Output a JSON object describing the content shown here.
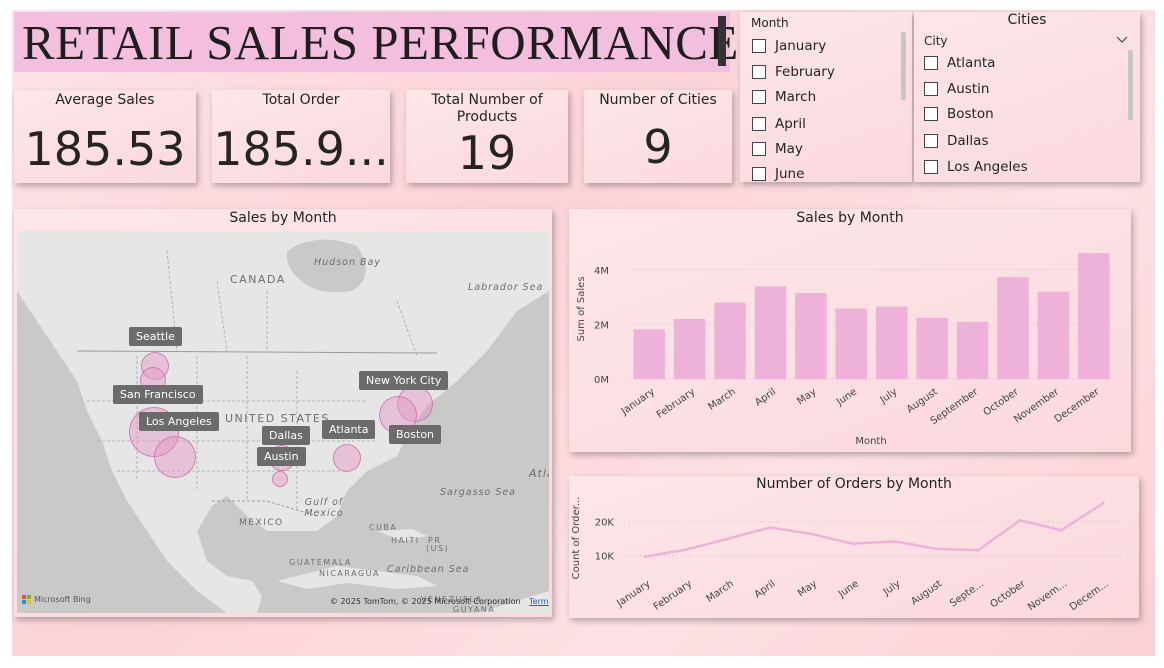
{
  "report": {
    "title": "RETAIL SALES PERFORMANCE",
    "accent": "#f4bfdf"
  },
  "kpis": [
    {
      "label": "Average Sales",
      "value": "185.53"
    },
    {
      "label": "Total Order",
      "value": "185.9..."
    },
    {
      "label": "Total Number of Products",
      "value": "19"
    },
    {
      "label": "Number of Cities",
      "value": "9"
    }
  ],
  "month_slicer": {
    "header": "Month",
    "items": [
      "January",
      "February",
      "March",
      "April",
      "May",
      "June"
    ]
  },
  "city_slicer": {
    "title": "Cities",
    "header": "City",
    "items": [
      "Atlanta",
      "Austin",
      "Boston",
      "Dallas",
      "Los Angeles"
    ]
  },
  "map": {
    "title": "Sales by Month",
    "labels": [
      "Seattle",
      "San Francisco",
      "Los Angeles",
      "Dallas",
      "Austin",
      "Atlanta",
      "New York City",
      "Boston"
    ],
    "regions": {
      "hudson": "Hudson Bay",
      "labrador": "Labrador Sea",
      "canada": "CANADA",
      "us": "UNITED STATES",
      "mexico": "MEXICO",
      "gulf": "Gulf of Mexico",
      "sargasso": "Sargasso Sea",
      "cuba": "CUBA",
      "haiti": "HAITI",
      "pr": "(US)",
      "guatemala": "GUATEMALA",
      "nicaragua": "NICARAGUA",
      "caribbean": "Caribbean Sea",
      "venezuela": "VENEZUELA",
      "guyana": "GUYANA",
      "atl": "Atla",
      "pr_name": "PR"
    },
    "brand": "Microsoft Bing",
    "copyright": "© 2025 TomTom, © 2025 Microsoft Corporation",
    "terms": "Terms"
  },
  "chart_data": [
    {
      "type": "bar",
      "title": "Sales by Month",
      "xlabel": "Month",
      "ylabel": "Sum of Sales",
      "categories": [
        "January",
        "February",
        "March",
        "April",
        "May",
        "June",
        "July",
        "August",
        "September",
        "October",
        "November",
        "December"
      ],
      "values": [
        1.82,
        2.2,
        2.8,
        3.39,
        3.15,
        2.58,
        2.65,
        2.24,
        2.09,
        3.73,
        3.2,
        4.61
      ],
      "unit": "M",
      "yticks": [
        "0M",
        "2M",
        "4M"
      ],
      "ylim": [
        0,
        5.2
      ],
      "color": "#eeb2d9",
      "grid": true
    },
    {
      "type": "line",
      "title": "Number of Orders by Month",
      "xlabel": "",
      "ylabel": "Count of Order...",
      "categories": [
        "January",
        "February",
        "March",
        "April",
        "May",
        "June",
        "July",
        "August",
        "Septe...",
        "October",
        "Novem...",
        "Decem..."
      ],
      "values": [
        9700,
        11800,
        15000,
        18300,
        16400,
        13500,
        14200,
        12000,
        11600,
        20400,
        17500,
        25500
      ],
      "yticks": [
        "10K",
        "20K"
      ],
      "ylim": [
        4000,
        27000
      ],
      "color": "#eeb2d9",
      "grid": true
    }
  ]
}
